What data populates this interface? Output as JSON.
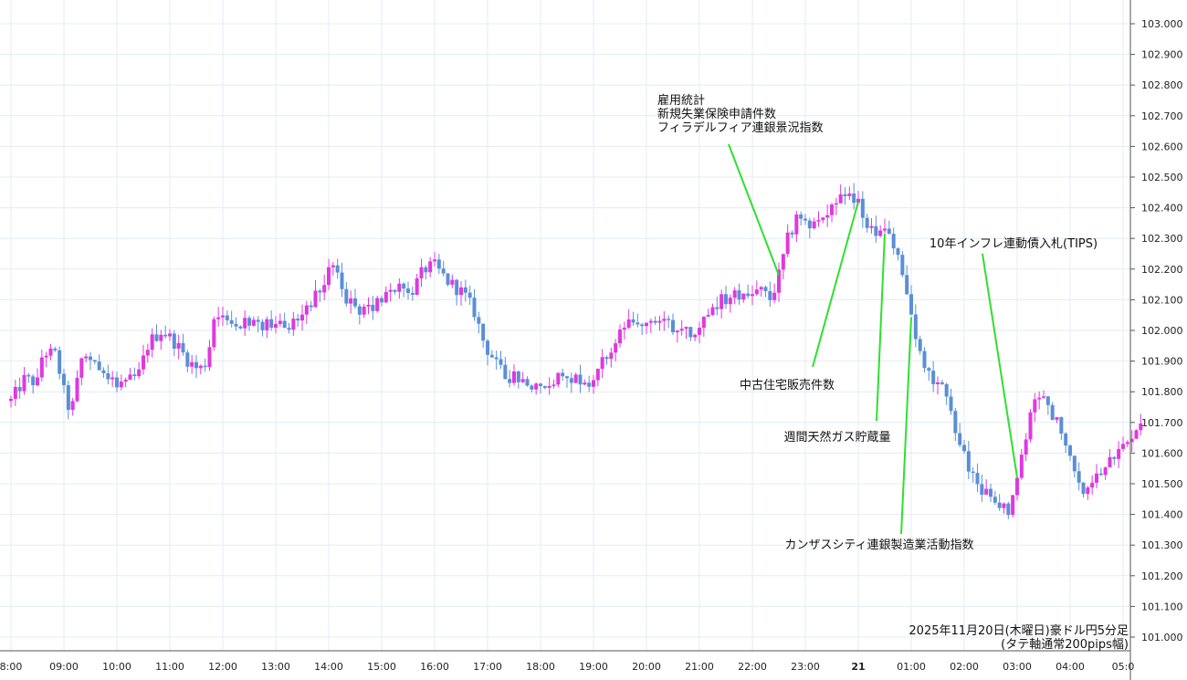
{
  "chart_data": {
    "type": "candlestick",
    "title": "",
    "caption": [
      "2025年11月20日(木曜日)豪ドル円5分足",
      "(タテ軸通常200pips幅)"
    ],
    "ylim": [
      100.96,
      103.06
    ],
    "y_ticks": [
      "103.000",
      "102.900",
      "102.800",
      "102.700",
      "102.600",
      "102.500",
      "102.400",
      "102.300",
      "102.200",
      "102.100",
      "102.000",
      "101.900",
      "101.800",
      "101.700",
      "101.600",
      "101.500",
      "101.400",
      "101.300",
      "101.200",
      "101.100",
      "101.000"
    ],
    "x_ticks": [
      {
        "label": "8:00",
        "t": 0.0
      },
      {
        "label": "09:00",
        "t": 1.0
      },
      {
        "label": "10:00",
        "t": 2.0
      },
      {
        "label": "11:00",
        "t": 3.0
      },
      {
        "label": "12:00",
        "t": 4.0
      },
      {
        "label": "13:00",
        "t": 5.0
      },
      {
        "label": "14:00",
        "t": 6.0
      },
      {
        "label": "15:00",
        "t": 7.0
      },
      {
        "label": "16:00",
        "t": 8.0
      },
      {
        "label": "17:00",
        "t": 9.0
      },
      {
        "label": "18:00",
        "t": 10.0
      },
      {
        "label": "19:00",
        "t": 11.0
      },
      {
        "label": "20:00",
        "t": 12.0
      },
      {
        "label": "21:00",
        "t": 13.0
      },
      {
        "label": "22:00",
        "t": 14.0
      },
      {
        "label": "23:00",
        "t": 15.0
      },
      {
        "label": "21",
        "t": 16.0,
        "bold": true
      },
      {
        "label": "01:00",
        "t": 17.0
      },
      {
        "label": "02:00",
        "t": 18.0
      },
      {
        "label": "03:00",
        "t": 19.0
      },
      {
        "label": "04:00",
        "t": 20.0
      },
      {
        "label": "05:0",
        "t": 21.0
      }
    ],
    "colors": {
      "up": "#e038e0",
      "down": "#5a8fd6",
      "annotation_line": "#2ee02e",
      "grid": "#e4ebf3"
    },
    "price_path": [
      [
        0.0,
        101.77
      ],
      [
        0.25,
        101.84
      ],
      [
        0.5,
        101.83
      ],
      [
        0.6,
        101.93
      ],
      [
        0.85,
        101.92
      ],
      [
        1.05,
        101.76
      ],
      [
        1.15,
        101.74
      ],
      [
        1.35,
        101.92
      ],
      [
        1.6,
        101.9
      ],
      [
        1.9,
        101.84
      ],
      [
        2.15,
        101.83
      ],
      [
        2.4,
        101.85
      ],
      [
        2.6,
        101.96
      ],
      [
        2.85,
        102.0
      ],
      [
        3.1,
        101.96
      ],
      [
        3.35,
        101.9
      ],
      [
        3.55,
        101.87
      ],
      [
        3.7,
        101.9
      ],
      [
        3.85,
        102.06
      ],
      [
        4.1,
        102.04
      ],
      [
        4.4,
        102.03
      ],
      [
        4.65,
        102.01
      ],
      [
        5.0,
        102.02
      ],
      [
        5.35,
        102.03
      ],
      [
        5.6,
        102.08
      ],
      [
        5.8,
        102.12
      ],
      [
        6.05,
        102.2
      ],
      [
        6.2,
        102.18
      ],
      [
        6.35,
        102.1
      ],
      [
        6.55,
        102.07
      ],
      [
        6.75,
        102.06
      ],
      [
        6.95,
        102.1
      ],
      [
        7.15,
        102.14
      ],
      [
        7.35,
        102.14
      ],
      [
        7.55,
        102.12
      ],
      [
        7.8,
        102.2
      ],
      [
        8.0,
        102.21
      ],
      [
        8.25,
        102.16
      ],
      [
        8.55,
        102.12
      ],
      [
        8.75,
        102.06
      ],
      [
        8.95,
        101.95
      ],
      [
        9.15,
        101.9
      ],
      [
        9.35,
        101.85
      ],
      [
        9.55,
        101.85
      ],
      [
        9.85,
        101.82
      ],
      [
        10.0,
        101.8
      ],
      [
        10.15,
        101.82
      ],
      [
        10.4,
        101.86
      ],
      [
        10.7,
        101.84
      ],
      [
        10.95,
        101.82
      ],
      [
        11.1,
        101.88
      ],
      [
        11.35,
        101.94
      ],
      [
        11.6,
        102.01
      ],
      [
        12.0,
        102.04
      ],
      [
        12.35,
        102.03
      ],
      [
        12.6,
        102.0
      ],
      [
        12.95,
        101.99
      ],
      [
        13.15,
        102.07
      ],
      [
        13.4,
        102.1
      ],
      [
        13.6,
        102.11
      ],
      [
        13.9,
        102.12
      ],
      [
        14.15,
        102.13
      ],
      [
        14.35,
        102.1
      ],
      [
        14.5,
        102.18
      ],
      [
        14.7,
        102.32
      ],
      [
        14.9,
        102.38
      ],
      [
        15.1,
        102.34
      ],
      [
        15.35,
        102.36
      ],
      [
        15.6,
        102.42
      ],
      [
        15.85,
        102.43
      ],
      [
        16.0,
        102.42
      ],
      [
        16.2,
        102.31
      ],
      [
        16.4,
        102.33
      ],
      [
        16.6,
        102.3
      ],
      [
        16.75,
        102.25
      ],
      [
        16.95,
        102.09
      ],
      [
        17.1,
        101.95
      ],
      [
        17.3,
        101.86
      ],
      [
        17.5,
        101.82
      ],
      [
        17.7,
        101.8
      ],
      [
        17.85,
        101.64
      ],
      [
        18.0,
        101.6
      ],
      [
        18.15,
        101.53
      ],
      [
        18.3,
        101.46
      ],
      [
        18.5,
        101.48
      ],
      [
        18.7,
        101.43
      ],
      [
        18.85,
        101.4
      ],
      [
        19.0,
        101.52
      ],
      [
        19.15,
        101.64
      ],
      [
        19.3,
        101.78
      ],
      [
        19.45,
        101.8
      ],
      [
        19.6,
        101.75
      ],
      [
        19.75,
        101.7
      ],
      [
        19.9,
        101.62
      ],
      [
        20.05,
        101.55
      ],
      [
        20.2,
        101.49
      ],
      [
        20.35,
        101.47
      ],
      [
        20.55,
        101.54
      ],
      [
        20.75,
        101.6
      ],
      [
        20.95,
        101.62
      ],
      [
        21.15,
        101.66
      ],
      [
        21.35,
        101.71
      ]
    ],
    "annotations": [
      {
        "lines": [
          "雇用統計",
          "新規失業保険申請件数",
          "フィラデルフィア連銀景況指数"
        ],
        "t": 14.5
      },
      {
        "lines": [
          "中古住宅販売件数"
        ],
        "t": 16.0
      },
      {
        "lines": [
          "週間天然ガス貯蔵量"
        ],
        "t": 16.5
      },
      {
        "lines": [
          "カンザスシティ連銀製造業活動指数"
        ],
        "t": 17.0
      },
      {
        "lines": [
          "10年インフレ連動債入札(TIPS)"
        ],
        "t": 19.0
      }
    ]
  }
}
